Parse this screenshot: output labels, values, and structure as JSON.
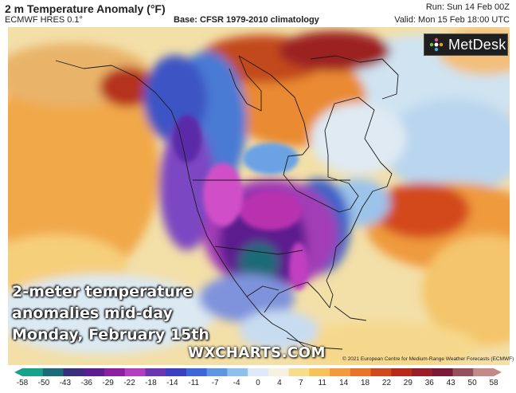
{
  "header": {
    "title": "2 m Temperature Anomaly (°F)",
    "model": "ECMWF HRES 0.1°",
    "base": "Base: CFSR 1979-2010 climatology",
    "run": "Run: Sun 14 Feb 00Z",
    "valid": "Valid: Mon 15 Feb 18:00 UTC"
  },
  "logo": {
    "text": "MetDesk",
    "icon": "metdesk-logo-icon"
  },
  "caption": {
    "line1": "2-meter temperature",
    "line2": "anomalies mid-day",
    "line3": "Monday, February 15th"
  },
  "watermark": "WXCHARTS.COM",
  "copyright": "© 2021 European Centre for Medium-Range Weather Forecasts (ECMWF)",
  "legend": {
    "ticks": [
      "-58",
      "-50",
      "-43",
      "-36",
      "-29",
      "-22",
      "-18",
      "-14",
      "-11",
      "-7",
      "-4",
      "0",
      "4",
      "7",
      "11",
      "14",
      "18",
      "22",
      "29",
      "36",
      "43",
      "50",
      "58"
    ],
    "colors": [
      "#16a38a",
      "#1c6b78",
      "#3a2f7a",
      "#5b1e8e",
      "#8a1fa2",
      "#b23fc0",
      "#6b36b0",
      "#3b3fc0",
      "#3d66d6",
      "#5f94e0",
      "#8fc0ec",
      "#dbeaf6",
      "#f6f1e0",
      "#f6dd8c",
      "#f5c35a",
      "#f19b3e",
      "#e67327",
      "#d04a1c",
      "#b82a1a",
      "#9a1e2a",
      "#7a1a38",
      "#94505e",
      "#c48a8a"
    ]
  }
}
